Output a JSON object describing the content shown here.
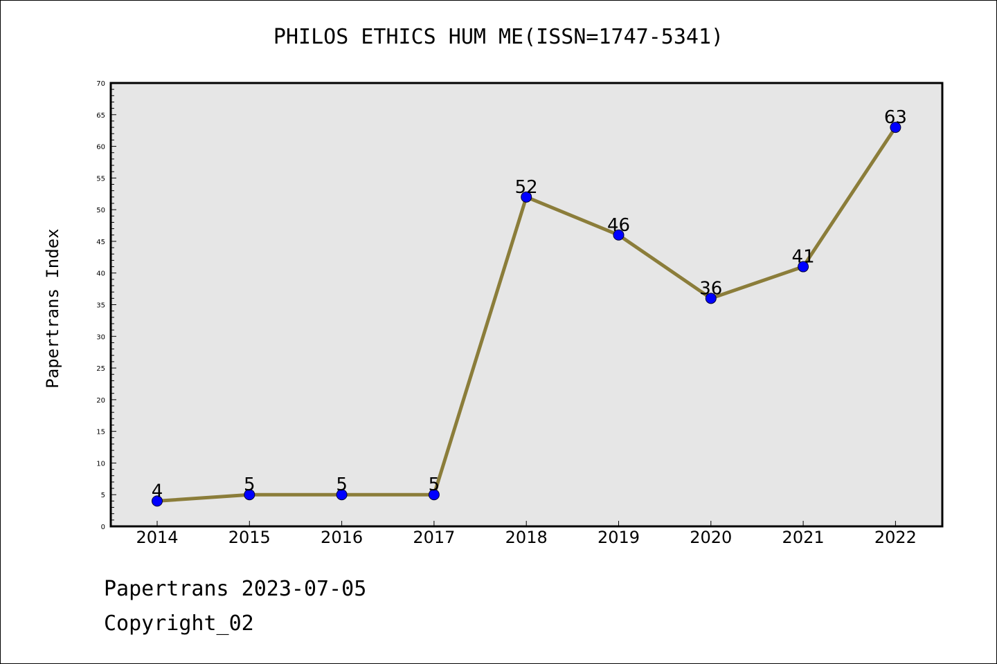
{
  "chart_data": {
    "type": "line",
    "title": "PHILOS ETHICS HUM ME(ISSN=1747-5341)",
    "xlabel": "",
    "ylabel": "Papertrans Index",
    "categories": [
      "2014",
      "2015",
      "2016",
      "2017",
      "2018",
      "2019",
      "2020",
      "2021",
      "2022"
    ],
    "series": [
      {
        "values": [
          4,
          5,
          5,
          5,
          52,
          46,
          36,
          41,
          63
        ],
        "line_color": "#8b7d3a",
        "marker_color": "#0000ff"
      }
    ],
    "ylim": [
      0,
      70
    ],
    "y_ticks": [
      "0",
      "5",
      "10",
      "15",
      "20",
      "25",
      "30",
      "35",
      "40",
      "45",
      "50",
      "55",
      "60",
      "65",
      "70"
    ],
    "data_labels": [
      "4",
      "5",
      "5",
      "5",
      "52",
      "46",
      "36",
      "41",
      "63"
    ],
    "plot_background": "#e6e6e6",
    "grid": false,
    "legend": "none"
  },
  "footer": {
    "date_line": "Papertrans 2023-07-05",
    "copyright_line": "Copyright_02"
  }
}
